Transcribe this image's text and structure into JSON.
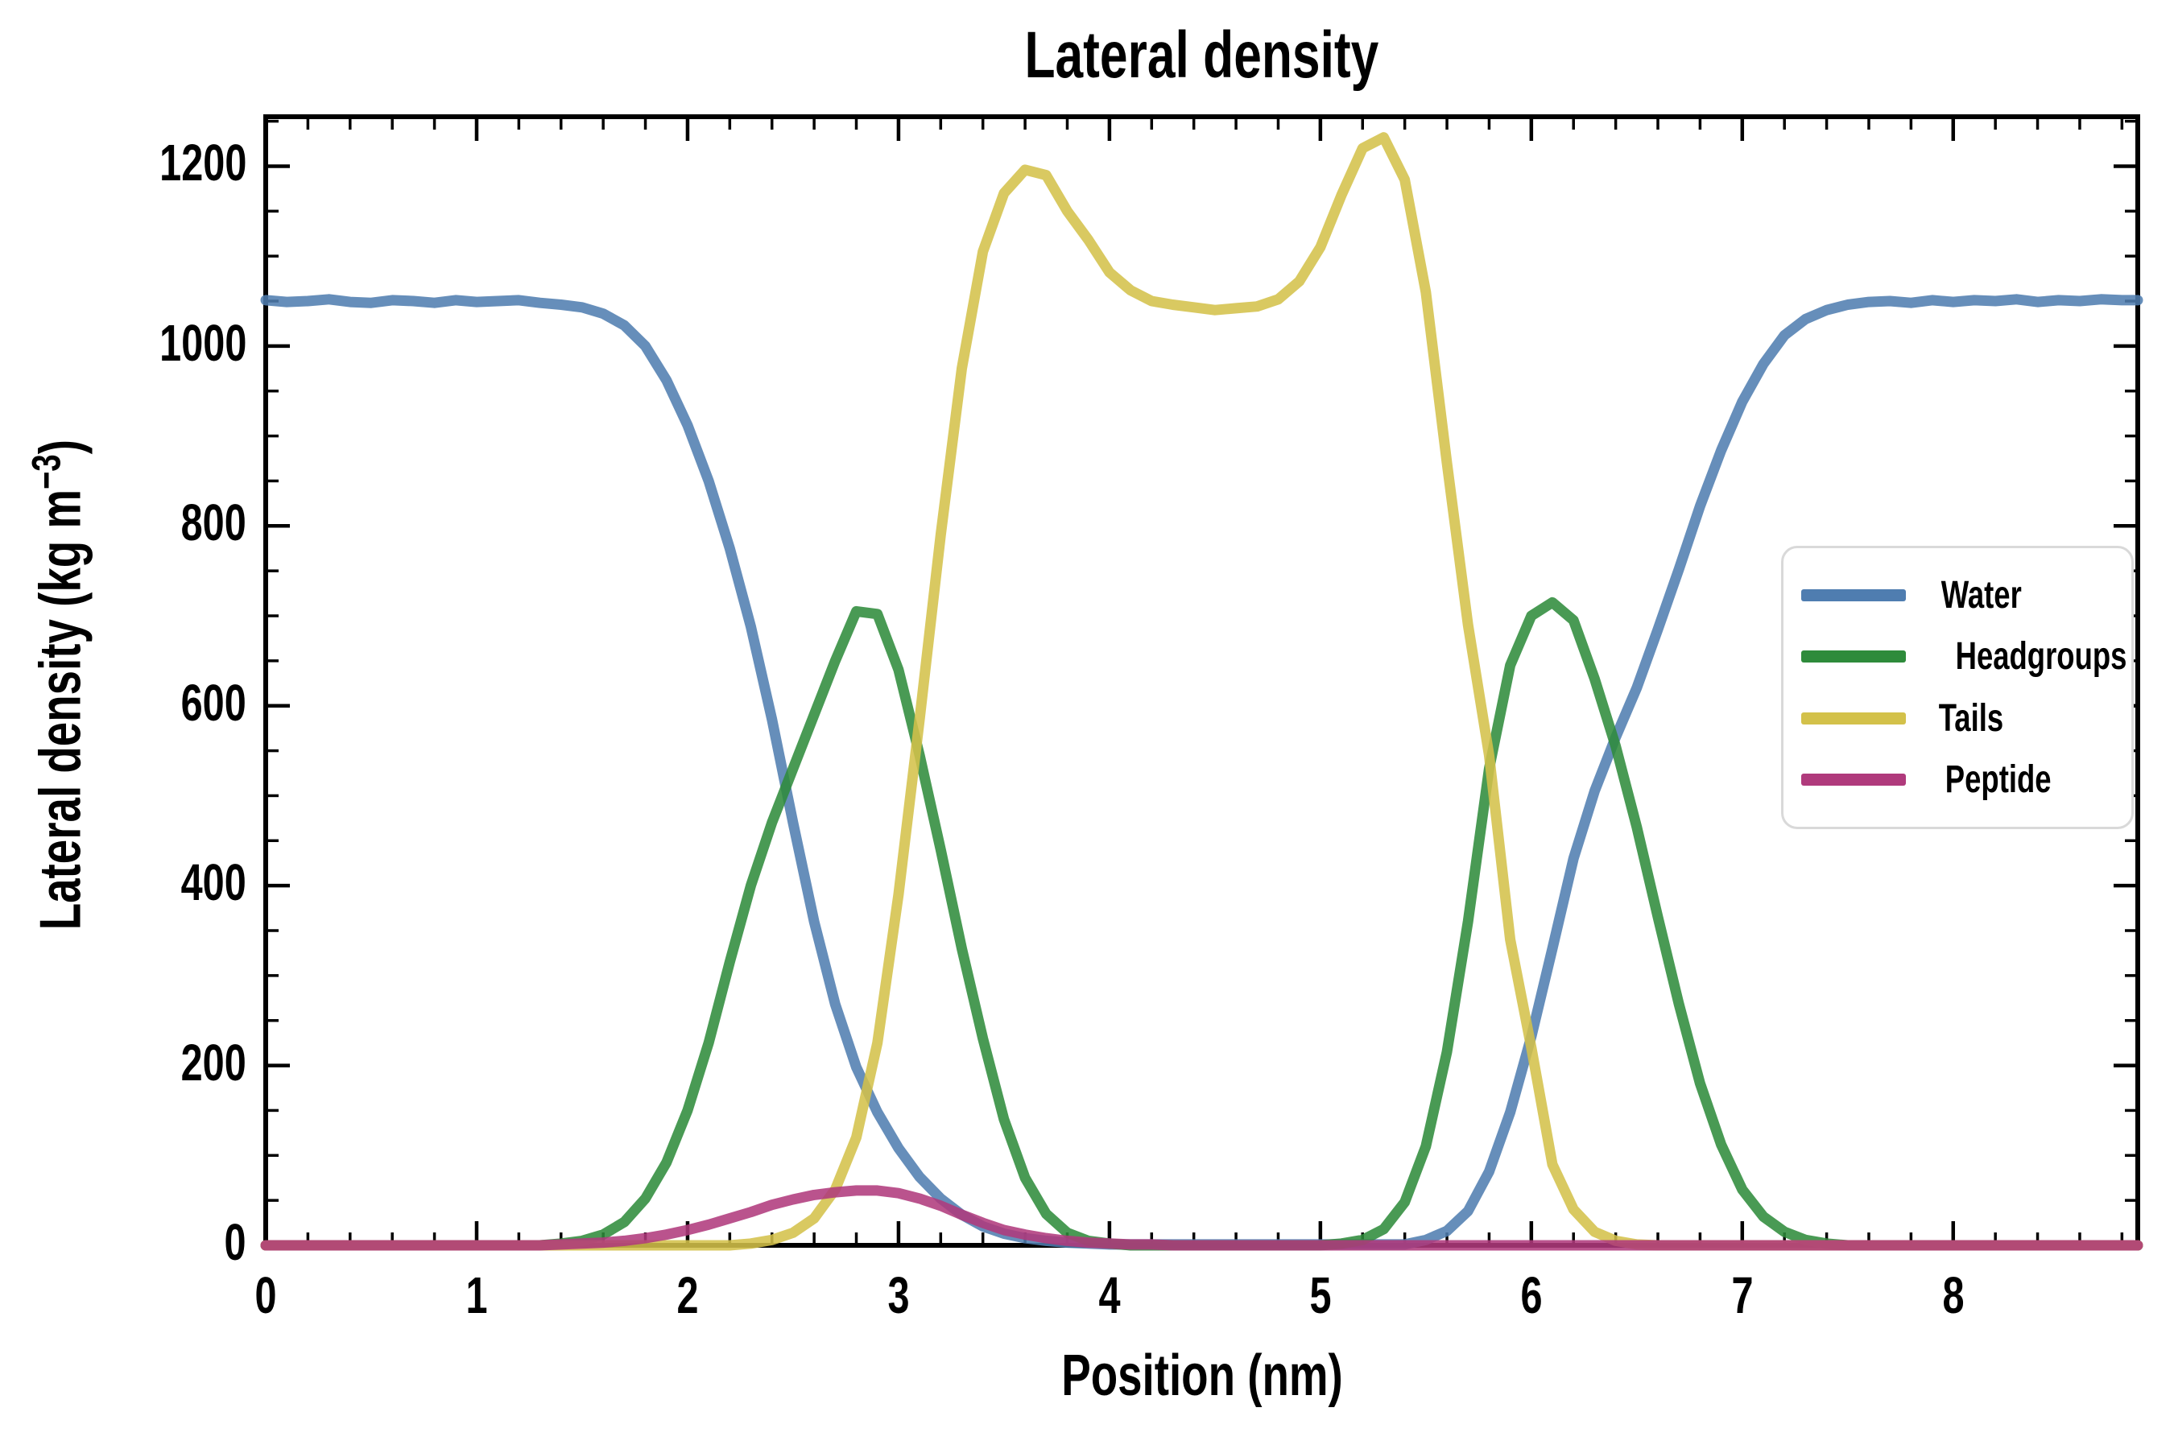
{
  "chart_data": {
    "type": "line",
    "title": "Lateral density",
    "xlabel": "Position (nm)",
    "ylabel": "Lateral density (kg m⁻³)",
    "ylabel_parts": {
      "prefix": "Lateral density (kg m",
      "sup": "−3",
      "suffix": ")"
    },
    "xlim": [
      0,
      8.875
    ],
    "ylim": [
      0,
      1255
    ],
    "xticks": [
      0,
      1,
      2,
      3,
      4,
      5,
      6,
      7,
      8
    ],
    "yticks": [
      0,
      200,
      400,
      600,
      800,
      1000,
      1200
    ],
    "x_minor_step": 0.2,
    "y_minor_step": 50,
    "grid": false,
    "legend_position": "center right",
    "axis_color": "#000000",
    "background_color": "#ffffff",
    "x": [
      0.0,
      0.1,
      0.2,
      0.3,
      0.4,
      0.5,
      0.6,
      0.7,
      0.8,
      0.9,
      1.0,
      1.1,
      1.2,
      1.3,
      1.4,
      1.5,
      1.6,
      1.7,
      1.8,
      1.9,
      2.0,
      2.1,
      2.2,
      2.3,
      2.4,
      2.5,
      2.6,
      2.7,
      2.8,
      2.9,
      3.0,
      3.1,
      3.2,
      3.3,
      3.4,
      3.5,
      3.6,
      3.7,
      3.8,
      3.9,
      4.0,
      4.1,
      4.2,
      4.3,
      4.4,
      4.5,
      4.6,
      4.7,
      4.8,
      4.9,
      5.0,
      5.1,
      5.2,
      5.3,
      5.4,
      5.5,
      5.6,
      5.7,
      5.8,
      5.9,
      6.0,
      6.1,
      6.2,
      6.3,
      6.4,
      6.5,
      6.6,
      6.7,
      6.8,
      6.9,
      7.0,
      7.1,
      7.2,
      7.3,
      7.4,
      7.5,
      7.6,
      7.7,
      7.8,
      7.9,
      8.0,
      8.1,
      8.2,
      8.3,
      8.4,
      8.5,
      8.6,
      8.7,
      8.8,
      8.875
    ],
    "series": [
      {
        "name": "Water",
        "color": "#4f7db0",
        "values": [
          1051,
          1049,
          1050,
          1052,
          1049,
          1048,
          1051,
          1050,
          1048,
          1051,
          1049,
          1050,
          1051,
          1048,
          1046,
          1043,
          1036,
          1023,
          1000,
          962,
          912,
          850,
          775,
          688,
          585,
          470,
          360,
          268,
          198,
          148,
          108,
          76,
          52,
          34,
          21,
          13,
          8,
          5,
          3,
          2,
          1,
          1,
          1,
          1,
          1,
          1,
          1,
          1,
          1,
          1,
          1,
          1,
          1,
          1,
          1,
          6,
          16,
          38,
          82,
          148,
          232,
          330,
          430,
          505,
          565,
          620,
          685,
          752,
          822,
          884,
          938,
          980,
          1012,
          1030,
          1040,
          1046,
          1049,
          1050,
          1048,
          1051,
          1049,
          1051,
          1050,
          1052,
          1049,
          1051,
          1050,
          1052,
          1051,
          1051
        ]
      },
      {
        "name": "Headgroups",
        "color": "#2e8b3b",
        "values": [
          0,
          0,
          0,
          0,
          0,
          0,
          0,
          0,
          0,
          0,
          0,
          0,
          0,
          0,
          2,
          5,
          12,
          26,
          52,
          92,
          150,
          225,
          315,
          400,
          470,
          530,
          590,
          650,
          705,
          702,
          640,
          545,
          440,
          330,
          230,
          140,
          75,
          35,
          14,
          5,
          2,
          0,
          0,
          0,
          0,
          0,
          0,
          0,
          0,
          0,
          0,
          2,
          6,
          18,
          48,
          110,
          215,
          360,
          530,
          645,
          700,
          715,
          695,
          630,
          555,
          465,
          365,
          268,
          180,
          112,
          62,
          32,
          15,
          6,
          2,
          0,
          0,
          0,
          0,
          0,
          0,
          0,
          0,
          0,
          0,
          0,
          0,
          0,
          0,
          0
        ]
      },
      {
        "name": "Tails",
        "color": "#d3c14a",
        "values": [
          0,
          0,
          0,
          0,
          0,
          0,
          0,
          0,
          0,
          0,
          0,
          0,
          0,
          0,
          0,
          0,
          0,
          0,
          0,
          0,
          0,
          0,
          0,
          2,
          6,
          14,
          30,
          62,
          120,
          225,
          390,
          585,
          790,
          975,
          1105,
          1170,
          1196,
          1190,
          1150,
          1118,
          1082,
          1062,
          1050,
          1046,
          1043,
          1040,
          1042,
          1044,
          1052,
          1072,
          1110,
          1168,
          1220,
          1232,
          1185,
          1060,
          870,
          690,
          545,
          340,
          220,
          90,
          40,
          15,
          5,
          1,
          0,
          0,
          0,
          0,
          0,
          0,
          0,
          0,
          0,
          0,
          0,
          0,
          0,
          0,
          0,
          0,
          0,
          0,
          0,
          0,
          0,
          0,
          0,
          0
        ]
      },
      {
        "name": "Peptide",
        "color": "#b03a7c",
        "values": [
          0,
          0,
          0,
          0,
          0,
          0,
          0,
          0,
          0,
          0,
          0,
          0,
          0,
          0,
          1,
          2,
          3,
          5,
          8,
          12,
          17,
          23,
          30,
          37,
          45,
          51,
          56,
          59,
          61,
          61,
          58,
          52,
          44,
          34,
          25,
          17,
          12,
          8,
          5,
          3,
          2,
          1,
          1,
          0,
          0,
          0,
          0,
          0,
          0,
          0,
          0,
          0,
          0,
          0,
          0,
          0,
          0,
          0,
          0,
          0,
          0,
          0,
          0,
          0,
          0,
          0,
          0,
          0,
          0,
          0,
          0,
          0,
          0,
          0,
          0,
          0,
          0,
          0,
          0,
          0,
          0,
          0,
          0,
          0,
          0,
          0,
          0,
          0,
          0,
          0
        ]
      }
    ]
  }
}
